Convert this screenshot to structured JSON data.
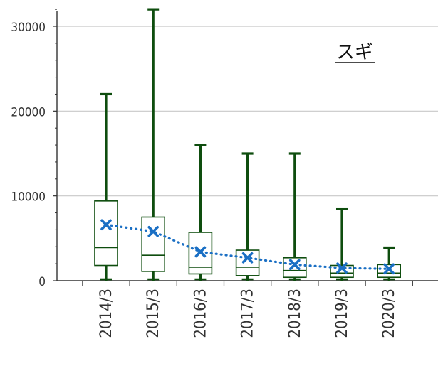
{
  "chart_data": {
    "type": "box",
    "title": "スギ",
    "categories": [
      "2014/3",
      "2015/3",
      "2016/3",
      "2017/3",
      "2018/3",
      "2019/3",
      "2020/3"
    ],
    "boxes": [
      {
        "min": 0,
        "q1": 1800,
        "median": 3900,
        "q3": 9400,
        "max": 22000,
        "mean": 6600
      },
      {
        "min": 0,
        "q1": 1100,
        "median": 3000,
        "q3": 7500,
        "max": 32000,
        "mean": 5800
      },
      {
        "min": 0,
        "q1": 800,
        "median": 1600,
        "q3": 5700,
        "max": 16000,
        "mean": 3400
      },
      {
        "min": 0,
        "q1": 600,
        "median": 1600,
        "q3": 3600,
        "max": 15000,
        "mean": 2700
      },
      {
        "min": 0,
        "q1": 400,
        "median": 1200,
        "q3": 2700,
        "max": 15000,
        "mean": 1900
      },
      {
        "min": 0,
        "q1": 400,
        "median": 900,
        "q3": 1800,
        "max": 8500,
        "mean": 1500
      },
      {
        "min": 0,
        "q1": 400,
        "median": 900,
        "q3": 1900,
        "max": 3900,
        "mean": 1400
      }
    ],
    "ylim": [
      0,
      32000
    ],
    "yticks": [
      0,
      10000,
      20000,
      30000
    ],
    "grid": true,
    "colors": {
      "box": "#0e4d0e",
      "mean": "#1a6fc4",
      "grid": "#c8c8c8",
      "axis": "#333333"
    }
  }
}
